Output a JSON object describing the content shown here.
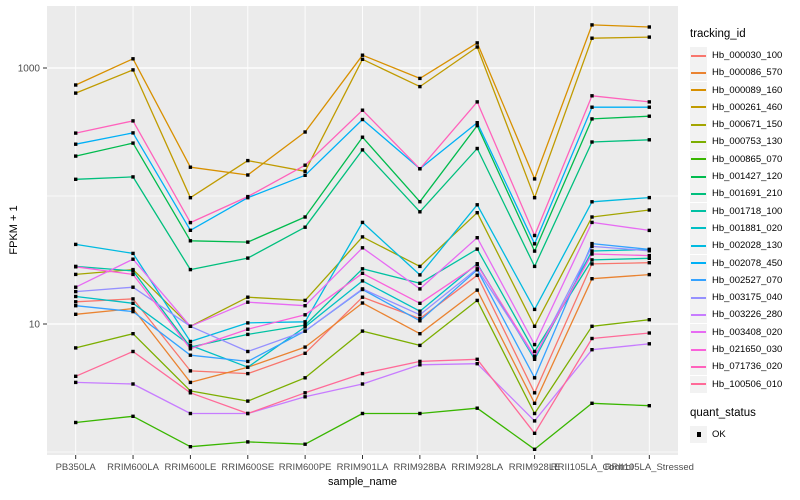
{
  "chart_data": {
    "type": "line",
    "xlabel": "sample_name",
    "ylabel": "FPKM + 1",
    "y_scale": "log10",
    "y_tick_labels": [
      "1000",
      "10"
    ],
    "y_tick_values": [
      1000,
      10
    ],
    "y_gridline_values": [
      1,
      10,
      100,
      1000
    ],
    "ylim": [
      0.9,
      3200
    ],
    "legend_title": "tracking_id",
    "legend2_title": "quant_status",
    "legend2_items": [
      "OK"
    ],
    "point_color": "#000000",
    "panel_bg": "#EBEBEB",
    "grid_color": "#FFFFFF",
    "tick_text_color": "#4D4D4D",
    "categories": [
      "PB350LA",
      "RRIM600LA",
      "RRIM600LE",
      "RRIM600SE",
      "RRIM600PE",
      "RRIM901LA",
      "RRIM928BA",
      "RRIM928LA",
      "RRIM928LE",
      "RRII105LA_Control",
      "RRII105LA_Stressed"
    ],
    "series": [
      {
        "name": "Hb_000030_100",
        "color": "#F8766D",
        "values": [
          14.9,
          15.7,
          4.3,
          4.1,
          5.9,
          16.2,
          11.0,
          24.0,
          2.9,
          29.5,
          30.1
        ]
      },
      {
        "name": "Hb_000086_570",
        "color": "#EA8331",
        "values": [
          11.9,
          13.2,
          3.5,
          4.6,
          6.6,
          14.6,
          8.4,
          18.4,
          2.4,
          22.6,
          24.3
        ]
      },
      {
        "name": "Hb_000089_160",
        "color": "#D89000",
        "values": [
          736,
          1180,
          168,
          146,
          316,
          1260,
          830,
          1570,
          136,
          2170,
          2090
        ]
      },
      {
        "name": "Hb_000261_460",
        "color": "#C09B00",
        "values": [
          637,
          966,
          97,
          189,
          156,
          1170,
          715,
          1460,
          97,
          1710,
          1745
        ]
      },
      {
        "name": "Hb_000671_150",
        "color": "#A3A500",
        "values": [
          24.4,
          26.6,
          9.6,
          16.2,
          15.3,
          47.9,
          28.2,
          74.1,
          9.6,
          68.5,
          77.8
        ]
      },
      {
        "name": "Hb_000753_130",
        "color": "#7CAE00",
        "values": [
          6.5,
          8.4,
          3.0,
          2.5,
          3.8,
          8.8,
          6.8,
          15.3,
          2.0,
          9.6,
          10.8
        ]
      },
      {
        "name": "Hb_000865_070",
        "color": "#39B600",
        "values": [
          1.7,
          1.9,
          1.1,
          1.2,
          1.15,
          2.0,
          2.0,
          2.2,
          1.05,
          2.4,
          2.3
        ]
      },
      {
        "name": "Hb_001427_120",
        "color": "#00BB4E",
        "values": [
          205,
          259,
          44.7,
          43.6,
          68.5,
          288,
          90.2,
          355,
          37.1,
          400,
          420
        ]
      },
      {
        "name": "Hb_001691_210",
        "color": "#00BF7D",
        "values": [
          135,
          141,
          26.6,
          32.7,
          57.0,
          229,
          75.2,
          235,
          28.2,
          264,
          275
        ]
      },
      {
        "name": "Hb_001718_100",
        "color": "#00C1A3",
        "values": [
          28.2,
          26.0,
          6.6,
          8.3,
          9.8,
          27.0,
          20.8,
          38.5,
          6.1,
          31.7,
          32.6
        ]
      },
      {
        "name": "Hb_001881_020",
        "color": "#00BFC4",
        "values": [
          16.4,
          14.5,
          6.8,
          4.6,
          9.5,
          21.7,
          12.6,
          29.6,
          5.3,
          37.2,
          38.2
        ]
      },
      {
        "name": "Hb_002028_130",
        "color": "#00BAE0",
        "values": [
          41.9,
          35.6,
          7.3,
          10.2,
          10.4,
          62.2,
          24.2,
          85.4,
          13.0,
          90.1,
          97.2
        ]
      },
      {
        "name": "Hb_002078_450",
        "color": "#00B0F6",
        "values": [
          254,
          311,
          54,
          97,
          145,
          396,
          163,
          374,
          42.3,
          494,
          494
        ]
      },
      {
        "name": "Hb_002527_070",
        "color": "#35A2FF",
        "values": [
          13.9,
          12.5,
          5.7,
          5.1,
          8.8,
          18.6,
          10.6,
          26.5,
          3.8,
          42.5,
          38.3
        ]
      },
      {
        "name": "Hb_003175_040",
        "color": "#9590FF",
        "values": [
          17.9,
          19.4,
          9.6,
          6.1,
          8.8,
          18.8,
          11.8,
          27.0,
          5.5,
          40.4,
          37.3
        ]
      },
      {
        "name": "Hb_003226_280",
        "color": "#C77CFF",
        "values": [
          3.5,
          3.4,
          2.0,
          2.0,
          2.7,
          3.4,
          4.8,
          4.9,
          1.75,
          6.3,
          7.0
        ]
      },
      {
        "name": "Hb_003408_020",
        "color": "#E76BF3",
        "values": [
          19.4,
          32.1,
          9.6,
          14.8,
          13.9,
          39.4,
          18.8,
          47.2,
          6.9,
          62.2,
          53.9
        ]
      },
      {
        "name": "Hb_021650_030",
        "color": "#FA62DB",
        "values": [
          28.0,
          24.4,
          6.4,
          9.1,
          11.8,
          24.9,
          14.5,
          29.0,
          5.6,
          35.2,
          34.2
        ]
      },
      {
        "name": "Hb_071736_020",
        "color": "#FF62BC",
        "values": [
          310,
          386,
          62,
          99,
          174,
          468,
          163,
          543,
          49.1,
          607,
          543
        ]
      },
      {
        "name": "Hb_100506_010",
        "color": "#FF6A98",
        "values": [
          3.9,
          6.1,
          2.9,
          2.0,
          2.9,
          4.1,
          5.1,
          5.3,
          1.4,
          7.7,
          8.5
        ]
      }
    ]
  }
}
